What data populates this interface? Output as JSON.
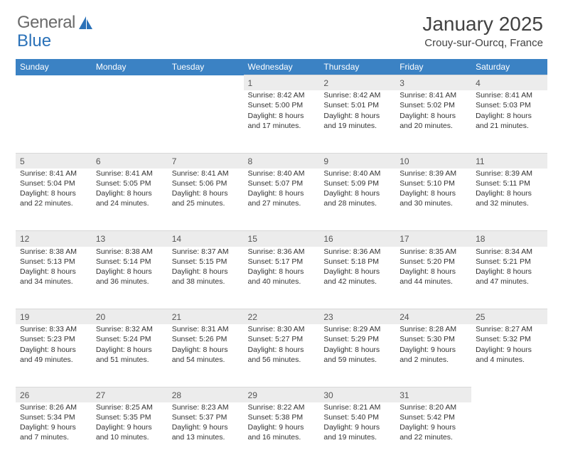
{
  "logo": {
    "word1": "General",
    "word2": "Blue"
  },
  "title": "January 2025",
  "location": "Crouy-sur-Ourcq, France",
  "colors": {
    "header_bg": "#3b82c4",
    "header_fg": "#ffffff",
    "daynum_bg": "#ececec",
    "page_bg": "#ffffff",
    "text": "#333333",
    "logo_gray": "#6a6a6a",
    "logo_blue": "#2a71b8"
  },
  "day_headers": [
    "Sunday",
    "Monday",
    "Tuesday",
    "Wednesday",
    "Thursday",
    "Friday",
    "Saturday"
  ],
  "weeks": [
    {
      "nums": [
        "",
        "",
        "",
        "1",
        "2",
        "3",
        "4"
      ],
      "cells": [
        null,
        null,
        null,
        {
          "sunrise": "Sunrise: 8:42 AM",
          "sunset": "Sunset: 5:00 PM",
          "daylight": "Daylight: 8 hours and 17 minutes."
        },
        {
          "sunrise": "Sunrise: 8:42 AM",
          "sunset": "Sunset: 5:01 PM",
          "daylight": "Daylight: 8 hours and 19 minutes."
        },
        {
          "sunrise": "Sunrise: 8:41 AM",
          "sunset": "Sunset: 5:02 PM",
          "daylight": "Daylight: 8 hours and 20 minutes."
        },
        {
          "sunrise": "Sunrise: 8:41 AM",
          "sunset": "Sunset: 5:03 PM",
          "daylight": "Daylight: 8 hours and 21 minutes."
        }
      ]
    },
    {
      "nums": [
        "5",
        "6",
        "7",
        "8",
        "9",
        "10",
        "11"
      ],
      "cells": [
        {
          "sunrise": "Sunrise: 8:41 AM",
          "sunset": "Sunset: 5:04 PM",
          "daylight": "Daylight: 8 hours and 22 minutes."
        },
        {
          "sunrise": "Sunrise: 8:41 AM",
          "sunset": "Sunset: 5:05 PM",
          "daylight": "Daylight: 8 hours and 24 minutes."
        },
        {
          "sunrise": "Sunrise: 8:41 AM",
          "sunset": "Sunset: 5:06 PM",
          "daylight": "Daylight: 8 hours and 25 minutes."
        },
        {
          "sunrise": "Sunrise: 8:40 AM",
          "sunset": "Sunset: 5:07 PM",
          "daylight": "Daylight: 8 hours and 27 minutes."
        },
        {
          "sunrise": "Sunrise: 8:40 AM",
          "sunset": "Sunset: 5:09 PM",
          "daylight": "Daylight: 8 hours and 28 minutes."
        },
        {
          "sunrise": "Sunrise: 8:39 AM",
          "sunset": "Sunset: 5:10 PM",
          "daylight": "Daylight: 8 hours and 30 minutes."
        },
        {
          "sunrise": "Sunrise: 8:39 AM",
          "sunset": "Sunset: 5:11 PM",
          "daylight": "Daylight: 8 hours and 32 minutes."
        }
      ]
    },
    {
      "nums": [
        "12",
        "13",
        "14",
        "15",
        "16",
        "17",
        "18"
      ],
      "cells": [
        {
          "sunrise": "Sunrise: 8:38 AM",
          "sunset": "Sunset: 5:13 PM",
          "daylight": "Daylight: 8 hours and 34 minutes."
        },
        {
          "sunrise": "Sunrise: 8:38 AM",
          "sunset": "Sunset: 5:14 PM",
          "daylight": "Daylight: 8 hours and 36 minutes."
        },
        {
          "sunrise": "Sunrise: 8:37 AM",
          "sunset": "Sunset: 5:15 PM",
          "daylight": "Daylight: 8 hours and 38 minutes."
        },
        {
          "sunrise": "Sunrise: 8:36 AM",
          "sunset": "Sunset: 5:17 PM",
          "daylight": "Daylight: 8 hours and 40 minutes."
        },
        {
          "sunrise": "Sunrise: 8:36 AM",
          "sunset": "Sunset: 5:18 PM",
          "daylight": "Daylight: 8 hours and 42 minutes."
        },
        {
          "sunrise": "Sunrise: 8:35 AM",
          "sunset": "Sunset: 5:20 PM",
          "daylight": "Daylight: 8 hours and 44 minutes."
        },
        {
          "sunrise": "Sunrise: 8:34 AM",
          "sunset": "Sunset: 5:21 PM",
          "daylight": "Daylight: 8 hours and 47 minutes."
        }
      ]
    },
    {
      "nums": [
        "19",
        "20",
        "21",
        "22",
        "23",
        "24",
        "25"
      ],
      "cells": [
        {
          "sunrise": "Sunrise: 8:33 AM",
          "sunset": "Sunset: 5:23 PM",
          "daylight": "Daylight: 8 hours and 49 minutes."
        },
        {
          "sunrise": "Sunrise: 8:32 AM",
          "sunset": "Sunset: 5:24 PM",
          "daylight": "Daylight: 8 hours and 51 minutes."
        },
        {
          "sunrise": "Sunrise: 8:31 AM",
          "sunset": "Sunset: 5:26 PM",
          "daylight": "Daylight: 8 hours and 54 minutes."
        },
        {
          "sunrise": "Sunrise: 8:30 AM",
          "sunset": "Sunset: 5:27 PM",
          "daylight": "Daylight: 8 hours and 56 minutes."
        },
        {
          "sunrise": "Sunrise: 8:29 AM",
          "sunset": "Sunset: 5:29 PM",
          "daylight": "Daylight: 8 hours and 59 minutes."
        },
        {
          "sunrise": "Sunrise: 8:28 AM",
          "sunset": "Sunset: 5:30 PM",
          "daylight": "Daylight: 9 hours and 2 minutes."
        },
        {
          "sunrise": "Sunrise: 8:27 AM",
          "sunset": "Sunset: 5:32 PM",
          "daylight": "Daylight: 9 hours and 4 minutes."
        }
      ]
    },
    {
      "nums": [
        "26",
        "27",
        "28",
        "29",
        "30",
        "31",
        ""
      ],
      "cells": [
        {
          "sunrise": "Sunrise: 8:26 AM",
          "sunset": "Sunset: 5:34 PM",
          "daylight": "Daylight: 9 hours and 7 minutes."
        },
        {
          "sunrise": "Sunrise: 8:25 AM",
          "sunset": "Sunset: 5:35 PM",
          "daylight": "Daylight: 9 hours and 10 minutes."
        },
        {
          "sunrise": "Sunrise: 8:23 AM",
          "sunset": "Sunset: 5:37 PM",
          "daylight": "Daylight: 9 hours and 13 minutes."
        },
        {
          "sunrise": "Sunrise: 8:22 AM",
          "sunset": "Sunset: 5:38 PM",
          "daylight": "Daylight: 9 hours and 16 minutes."
        },
        {
          "sunrise": "Sunrise: 8:21 AM",
          "sunset": "Sunset: 5:40 PM",
          "daylight": "Daylight: 9 hours and 19 minutes."
        },
        {
          "sunrise": "Sunrise: 8:20 AM",
          "sunset": "Sunset: 5:42 PM",
          "daylight": "Daylight: 9 hours and 22 minutes."
        },
        null
      ]
    }
  ]
}
